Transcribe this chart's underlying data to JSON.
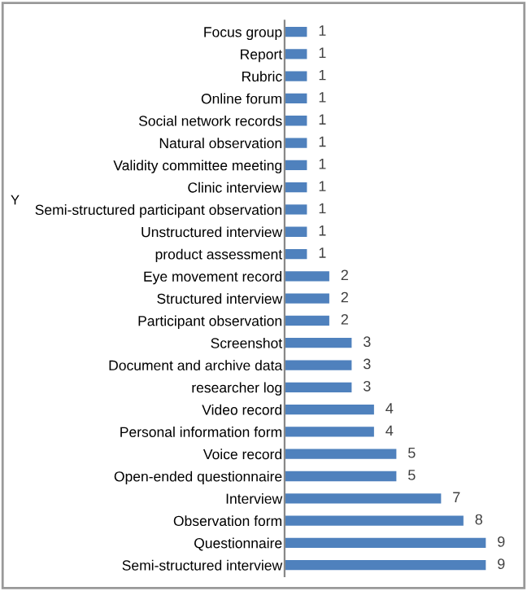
{
  "chart_data": {
    "type": "bar",
    "orientation": "horizontal",
    "ylabel": "Y",
    "categories": [
      "Focus group",
      "Report",
      "Rubric",
      "Online forum",
      "Social network records",
      "Natural observation",
      "Validity committee meeting",
      "Clinic interview",
      "Semi-structured participant observation",
      "Unstructured interview",
      "product assessment",
      "Eye movement record",
      "Structured interview",
      "Participant observation",
      "Screenshot",
      "Document and archive data",
      "researcher log",
      "Video record",
      "Personal information form",
      "Voice record",
      "Open-ended questionnaire",
      "Interview",
      "Observation form",
      "Questionnaire",
      "Semi-structured interview"
    ],
    "values": [
      1,
      1,
      1,
      1,
      1,
      1,
      1,
      1,
      1,
      1,
      1,
      2,
      2,
      2,
      3,
      3,
      3,
      4,
      4,
      5,
      5,
      7,
      8,
      9,
      9
    ],
    "color": "#4f81bd",
    "data_labels": true,
    "grid": false,
    "legend": false
  }
}
